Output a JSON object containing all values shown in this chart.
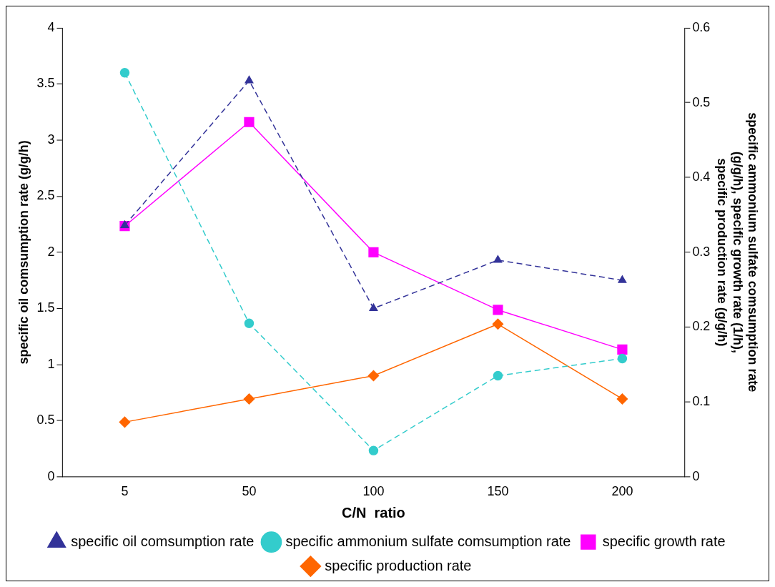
{
  "chart_data": {
    "type": "line",
    "xlabel": "C/N  ratio",
    "ylabel": "specific oil comsumption rate (g/g/h)",
    "y2label": "specific ammonium sulfate comsumption rate (g/g/h), specific growth rate (1/h), specific production rate (g/g/h)",
    "categories": [
      "5",
      "50",
      "100",
      "150",
      "200"
    ],
    "ylim": [
      0,
      4
    ],
    "yticks": [
      0,
      0.5,
      1,
      1.5,
      2,
      2.5,
      3,
      3.5,
      4
    ],
    "y2lim": [
      0,
      0.6
    ],
    "y2ticks": [
      0,
      0.1,
      0.2,
      0.3,
      0.4,
      0.5,
      0.6
    ],
    "grid": false,
    "legend": "bottom",
    "series": [
      {
        "name": "specific oil comsumption rate",
        "color": "#333399",
        "values": [
          2.24,
          3.53,
          1.5,
          1.93,
          1.75
        ],
        "marker": "triangle",
        "line_style": "dashed"
      },
      {
        "name": "specific ammonium sulfate comsumption rate",
        "color": "#33cccc",
        "values": [
          0.54,
          0.205,
          0.035,
          0.135,
          0.158
        ],
        "axis": "y2",
        "marker": "circle",
        "line_style": "dashed"
      },
      {
        "name": "specific growth rate",
        "color": "#ff00ff",
        "values": [
          0.335,
          0.474,
          0.3,
          0.223,
          0.17
        ],
        "axis": "y2",
        "marker": "square",
        "line_style": "solid"
      },
      {
        "name": "specific production rate",
        "color": "#ff6600",
        "values": [
          0.073,
          0.104,
          0.135,
          0.204,
          0.104
        ],
        "axis": "y2",
        "marker": "diamond",
        "line_style": "solid"
      }
    ]
  }
}
